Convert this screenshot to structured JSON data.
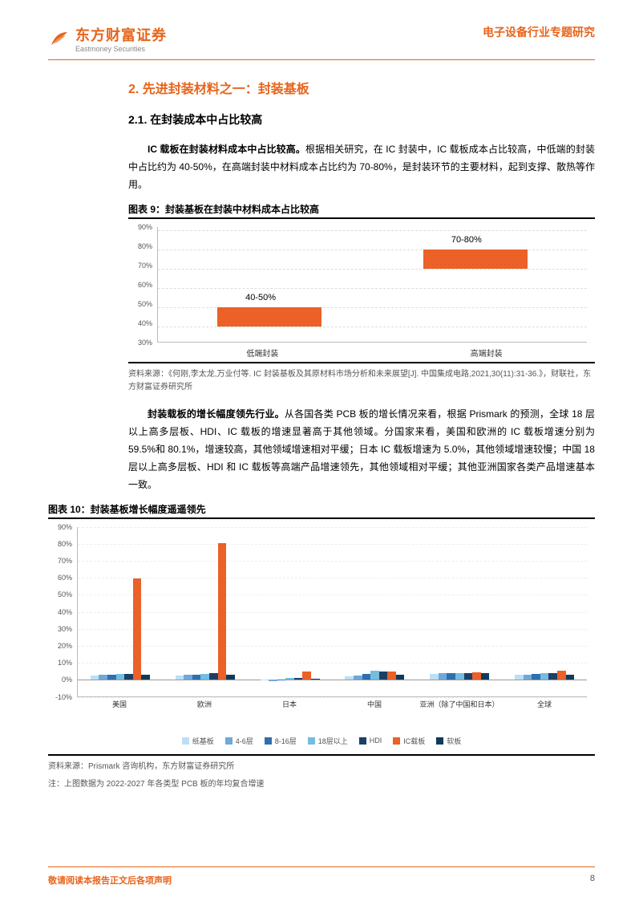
{
  "header": {
    "logo_cn": "东方财富证券",
    "logo_en": "Eastmoney Securities",
    "right": "电子设备行业专题研究"
  },
  "section": {
    "title": "2. 先进封装材料之一：封装基板",
    "sub1": {
      "title": "2.1. 在封装成本中占比较高",
      "para1": "IC 载板在封装材料成本中占比较高。根据相关研究，在 IC 封装中，IC 载板成本占比较高，中低端的封装中占比约为 40-50%，在高端封装中材料成本占比约为 70-80%，是封装环节的主要材料，起到支撑、散热等作用。"
    },
    "para2": "封装载板的增长幅度领先行业。从各国各类 PCB 板的增长情况来看，根据 Prismark 的预测，全球 18 层以上高多层板、HDI、IC 载板的增速显著高于其他领域。分国家来看，美国和欧洲的 IC 载板增速分别为 59.5%和 80.1%，增速较高，其他领域增速相对平缓；日本 IC 载板增速为 5.0%，其他领域增速较慢；中国 18 层以上高多层板、HDI 和 IC 载板等高端产品增速领先，其他领域相对平缓；其他亚洲国家各类产品增速基本一致。"
  },
  "fig9": {
    "title": "图表 9：封装基板在封装中材料成本占比较高",
    "ylim": [
      30,
      90
    ],
    "ytick_step": 10,
    "categories": [
      "低端封装",
      "高端封装"
    ],
    "bars": [
      {
        "low": 40,
        "high": 50,
        "label": "40-50%"
      },
      {
        "low": 70,
        "high": 80,
        "label": "70-80%"
      }
    ],
    "bar_color": "#eb6128",
    "source": "资料来源：《何刚,李太龙,万业付等. IC 封装基板及其原材料市场分析和未来展望[J]. 中国集成电路,2021,30(11):31-36.》，财联社，东方财富证券研究所"
  },
  "fig10": {
    "title": "图表 10：封装基板增长幅度遥遥领先",
    "ylim": [
      -10,
      90
    ],
    "ytick_step": 10,
    "series": [
      {
        "name": "纸基板",
        "color": "#bcdff5"
      },
      {
        "name": "4-6层",
        "color": "#6fa9d8"
      },
      {
        "name": "8-16层",
        "color": "#2f6fae"
      },
      {
        "name": "18层以上",
        "color": "#75bde0"
      },
      {
        "name": "HDI",
        "color": "#1c3f66"
      },
      {
        "name": "IC载板",
        "color": "#eb6128"
      },
      {
        "name": "软板",
        "color": "#103a5a"
      }
    ],
    "categories": [
      "美国",
      "欧洲",
      "日本",
      "中国",
      "亚洲（除了中国和日本）",
      "全球"
    ],
    "values": [
      [
        2.6,
        3.0,
        3.0,
        3.5,
        3.5,
        59.5,
        3.0
      ],
      [
        2.5,
        3.0,
        3.2,
        3.4,
        3.8,
        80.1,
        3.0
      ],
      [
        -0.5,
        -1.0,
        0.0,
        1.0,
        1.0,
        5.0,
        0.5
      ],
      [
        1.8,
        2.5,
        3.5,
        5.2,
        5.0,
        5.0,
        3.0
      ],
      [
        3.5,
        3.8,
        3.8,
        4.0,
        4.0,
        4.2,
        3.8
      ],
      [
        2.8,
        3.0,
        3.3,
        4.0,
        3.8,
        5.5,
        3.2
      ]
    ],
    "source": "资料来源：Prismark 咨询机构，东方财富证券研究所",
    "note": "注：上图数据为 2022-2027 年各类型 PCB 板的年均复合增速"
  },
  "footer": {
    "left": "敬请阅读本报告正文后各项声明",
    "page": "8"
  }
}
